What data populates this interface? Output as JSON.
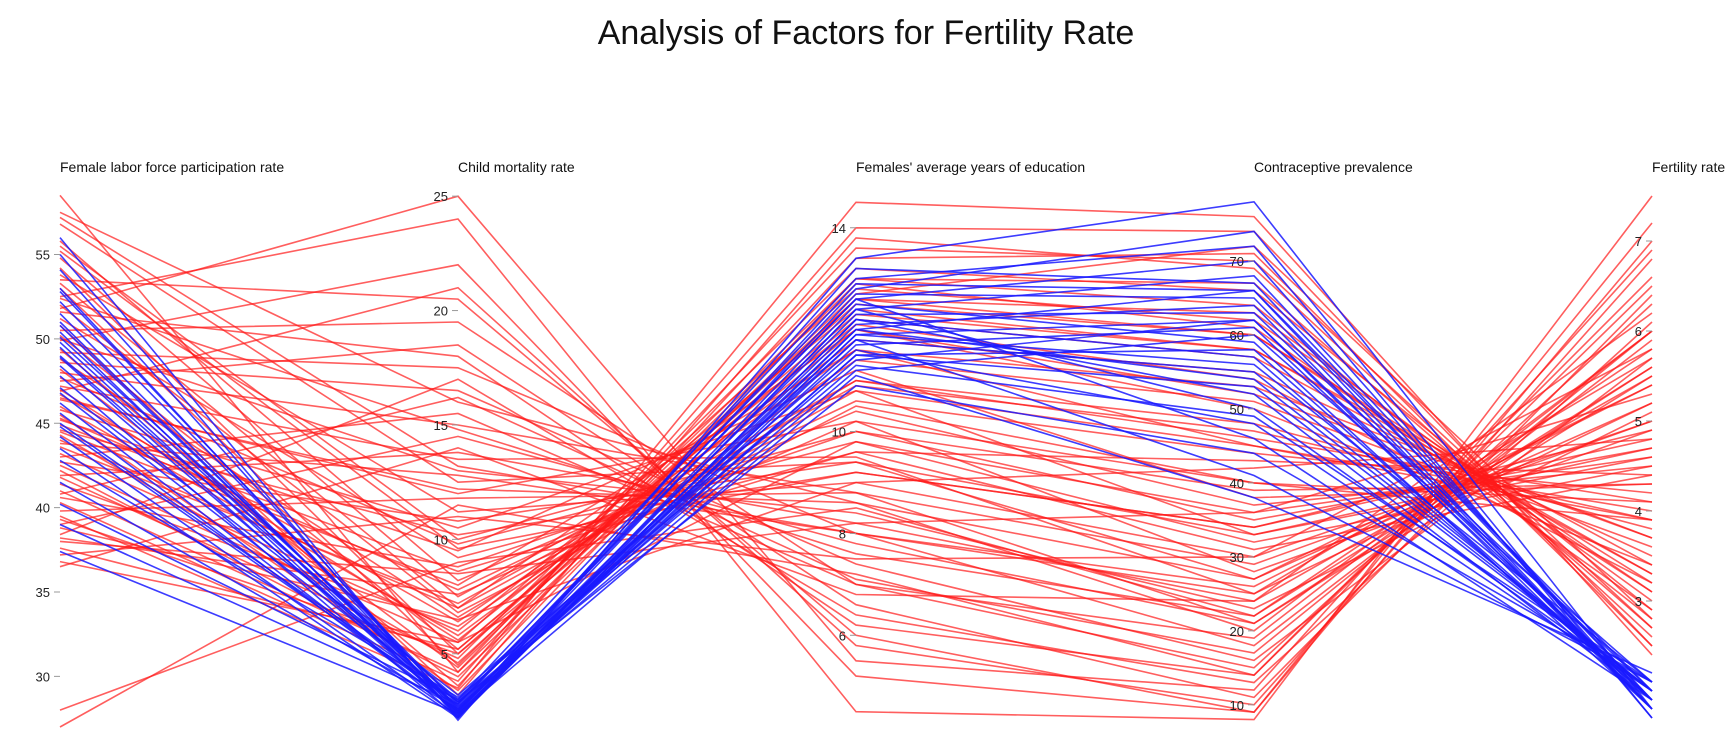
{
  "chart_data": {
    "type": "parallel_coordinates",
    "title": "Analysis of Factors for Fertility Rate",
    "dimensions": [
      {
        "key": "flfp",
        "label": "Female labor force participation rate",
        "range": [
          27,
          59
        ],
        "ticks": [
          30,
          35,
          40,
          45,
          50,
          55
        ]
      },
      {
        "key": "cmr",
        "label": "Child mortality rate",
        "range": [
          1.8,
          25.4
        ],
        "ticks": [
          5,
          10,
          15,
          20,
          25
        ]
      },
      {
        "key": "edu",
        "label": "Females' average years of education",
        "range": [
          4.2,
          14.8
        ],
        "ticks": [
          6,
          8,
          10,
          14
        ]
      },
      {
        "key": "cp",
        "label": "Contraceptive prevalence",
        "range": [
          7,
          80
        ],
        "ticks": [
          10,
          20,
          30,
          40,
          50,
          60,
          70
        ]
      },
      {
        "key": "fr",
        "label": "Fertility rate",
        "range": [
          1.6,
          7.6
        ],
        "ticks": [
          3,
          4,
          5,
          6,
          7
        ]
      }
    ],
    "colors": {
      "low_fertility": "#1a1aff",
      "high_fertility": "#ff1a1a"
    },
    "color_rule": "lines with fertility rate below 2.3 drawn blue, others red",
    "series": [
      {
        "name": "",
        "values": [
          [
            55.0,
            2.2,
            12.4,
            68,
            1.9
          ],
          [
            54.1,
            2.5,
            12.1,
            64,
            1.8
          ],
          [
            53.0,
            2.4,
            11.9,
            62,
            1.8
          ],
          [
            52.2,
            2.8,
            12.8,
            74,
            1.7
          ],
          [
            51.5,
            2.3,
            12.0,
            66,
            2.0
          ],
          [
            50.8,
            2.6,
            11.5,
            58,
            1.9
          ],
          [
            50.1,
            2.9,
            12.6,
            70,
            1.8
          ],
          [
            49.5,
            2.4,
            11.8,
            55,
            2.0
          ],
          [
            49.0,
            3.0,
            13.0,
            72,
            1.7
          ],
          [
            48.4,
            2.7,
            11.2,
            60,
            2.1
          ],
          [
            47.8,
            2.2,
            12.2,
            52,
            1.9
          ],
          [
            47.1,
            3.2,
            11.6,
            48,
            2.0
          ],
          [
            46.2,
            2.5,
            12.9,
            66,
            1.8
          ],
          [
            45.0,
            2.9,
            10.9,
            44,
            2.1
          ],
          [
            44.2,
            2.3,
            12.4,
            50,
            2.0
          ],
          [
            42.8,
            3.1,
            11.4,
            62,
            1.9
          ],
          [
            41.5,
            2.6,
            11.9,
            56,
            2.1
          ],
          [
            39.0,
            2.8,
            12.6,
            46,
            1.9
          ],
          [
            37.4,
            2.4,
            11.1,
            38,
            2.2
          ],
          [
            56.0,
            2.1,
            13.4,
            78,
            1.8
          ],
          [
            52.8,
            2.6,
            12.3,
            63,
            2.0
          ],
          [
            51.0,
            2.5,
            11.7,
            61,
            1.9
          ],
          [
            50.4,
            2.3,
            12.5,
            59,
            1.8
          ],
          [
            49.8,
            2.7,
            12.0,
            54,
            2.0
          ],
          [
            48.9,
            2.4,
            13.2,
            67,
            1.9
          ],
          [
            46.8,
            2.9,
            11.3,
            49,
            2.1
          ],
          [
            45.6,
            2.5,
            12.7,
            65,
            1.8
          ],
          [
            44.8,
            2.8,
            11.5,
            53,
            2.0
          ],
          [
            43.5,
            2.2,
            12.2,
            57,
            1.9
          ],
          [
            40.2,
            3.0,
            11.8,
            41,
            2.1
          ],
          [
            28.0,
            9.0,
            8.5,
            22,
            5.8
          ],
          [
            27.0,
            11.5,
            7.2,
            14,
            6.6
          ],
          [
            36.8,
            5.5,
            9.8,
            32,
            4.5
          ],
          [
            53.5,
            20.5,
            6.0,
            9,
            7.2
          ],
          [
            52.5,
            24.0,
            4.5,
            8,
            7.5
          ],
          [
            51.8,
            25.0,
            5.5,
            12,
            6.9
          ],
          [
            50.5,
            19.5,
            7.0,
            15,
            6.3
          ],
          [
            49.2,
            17.5,
            8.0,
            18,
            5.9
          ],
          [
            48.0,
            15.0,
            8.8,
            21,
            5.5
          ],
          [
            47.2,
            13.5,
            9.5,
            25,
            5.2
          ],
          [
            46.5,
            12.0,
            10.2,
            28,
            4.9
          ],
          [
            45.8,
            10.5,
            10.8,
            33,
            4.6
          ],
          [
            45.2,
            9.5,
            11.2,
            38,
            4.3
          ],
          [
            44.5,
            8.0,
            11.6,
            45,
            4.0
          ],
          [
            44.0,
            7.0,
            12.0,
            52,
            3.7
          ],
          [
            43.2,
            6.0,
            12.4,
            58,
            3.4
          ],
          [
            42.5,
            5.5,
            12.8,
            62,
            3.1
          ],
          [
            41.8,
            4.8,
            13.2,
            66,
            2.9
          ],
          [
            41.0,
            4.2,
            13.6,
            70,
            2.7
          ],
          [
            40.3,
            3.8,
            14.0,
            74,
            2.5
          ],
          [
            39.5,
            3.5,
            14.5,
            76,
            2.4
          ],
          [
            38.8,
            6.5,
            9.0,
            42,
            4.8
          ],
          [
            38.0,
            8.5,
            8.2,
            36,
            5.3
          ],
          [
            37.2,
            11.0,
            7.5,
            30,
            5.8
          ],
          [
            36.5,
            14.0,
            6.8,
            24,
            6.2
          ],
          [
            57.5,
            16.0,
            8.6,
            20,
            6.0
          ],
          [
            56.8,
            12.5,
            9.4,
            27,
            5.4
          ],
          [
            55.5,
            10.0,
            10.0,
            35,
            4.7
          ],
          [
            54.8,
            7.5,
            11.0,
            46,
            4.1
          ],
          [
            54.2,
            5.0,
            12.5,
            60,
            3.2
          ],
          [
            53.0,
            4.5,
            13.0,
            64,
            2.8
          ],
          [
            52.0,
            6.8,
            10.5,
            40,
            3.9
          ],
          [
            51.2,
            9.2,
            9.6,
            31,
            4.4
          ],
          [
            50.0,
            13.0,
            8.4,
            23,
            5.1
          ],
          [
            48.6,
            16.5,
            7.4,
            16,
            5.7
          ],
          [
            47.5,
            18.5,
            6.6,
            11,
            6.4
          ],
          [
            46.9,
            21.0,
            5.8,
            10,
            6.8
          ],
          [
            46.0,
            5.8,
            11.8,
            55,
            3.5
          ],
          [
            45.3,
            7.8,
            10.6,
            44,
            4.2
          ],
          [
            44.6,
            10.2,
            9.2,
            34,
            4.8
          ],
          [
            43.8,
            12.8,
            8.0,
            26,
            5.4
          ],
          [
            43.0,
            15.5,
            7.0,
            19,
            6.0
          ],
          [
            42.2,
            4.0,
            12.6,
            63,
            3.0
          ],
          [
            41.4,
            6.2,
            11.4,
            51,
            3.6
          ],
          [
            40.6,
            8.8,
            10.0,
            39,
            4.3
          ],
          [
            39.8,
            11.8,
            8.8,
            29,
            5.0
          ],
          [
            39.0,
            14.5,
            7.8,
            21,
            5.6
          ],
          [
            38.4,
            17.0,
            6.4,
            13,
            6.1
          ],
          [
            37.6,
            5.2,
            12.2,
            57,
            3.3
          ],
          [
            50.8,
            3.2,
            13.8,
            69,
            2.6
          ],
          [
            49.4,
            3.6,
            13.4,
            71,
            2.5
          ],
          [
            48.2,
            4.4,
            12.9,
            61,
            2.9
          ],
          [
            47.0,
            5.6,
            12.1,
            54,
            3.2
          ],
          [
            55.8,
            8.2,
            10.4,
            37,
            4.5
          ],
          [
            53.8,
            11.2,
            9.0,
            30,
            5.0
          ],
          [
            52.4,
            14.8,
            7.6,
            22,
            5.6
          ],
          [
            51.6,
            18.0,
            6.2,
            14,
            6.5
          ],
          [
            49.9,
            22.0,
            5.2,
            9,
            7.0
          ],
          [
            48.8,
            6.6,
            11.0,
            48,
            3.8
          ],
          [
            47.7,
            9.8,
            9.8,
            36,
            4.6
          ],
          [
            46.4,
            12.2,
            8.6,
            27,
            5.2
          ],
          [
            45.5,
            3.4,
            13.0,
            67,
            2.7
          ],
          [
            44.3,
            4.6,
            12.6,
            60,
            3.1
          ],
          [
            43.6,
            7.2,
            10.9,
            47,
            3.9
          ],
          [
            42.7,
            10.8,
            9.4,
            33,
            4.7
          ],
          [
            41.9,
            13.8,
            8.2,
            24,
            5.5
          ],
          [
            40.8,
            16.2,
            7.1,
            17,
            6.0
          ],
          [
            39.3,
            5.0,
            12.0,
            50,
            3.4
          ],
          [
            38.2,
            7.6,
            10.2,
            40,
            4.1
          ],
          [
            44.9,
            8.6,
            9.6,
            43,
            4.4
          ],
          [
            46.7,
            6.4,
            11.6,
            53,
            3.7
          ],
          [
            50.2,
            5.2,
            12.3,
            58,
            3.3
          ],
          [
            53.3,
            7.0,
            10.8,
            45,
            3.9
          ],
          [
            55.2,
            9.6,
            9.2,
            34,
            4.9
          ],
          [
            57.2,
            13.2,
            8.0,
            25,
            5.7
          ],
          [
            58.5,
            4.2,
            12.7,
            72,
            2.8
          ]
        ]
      }
    ]
  }
}
